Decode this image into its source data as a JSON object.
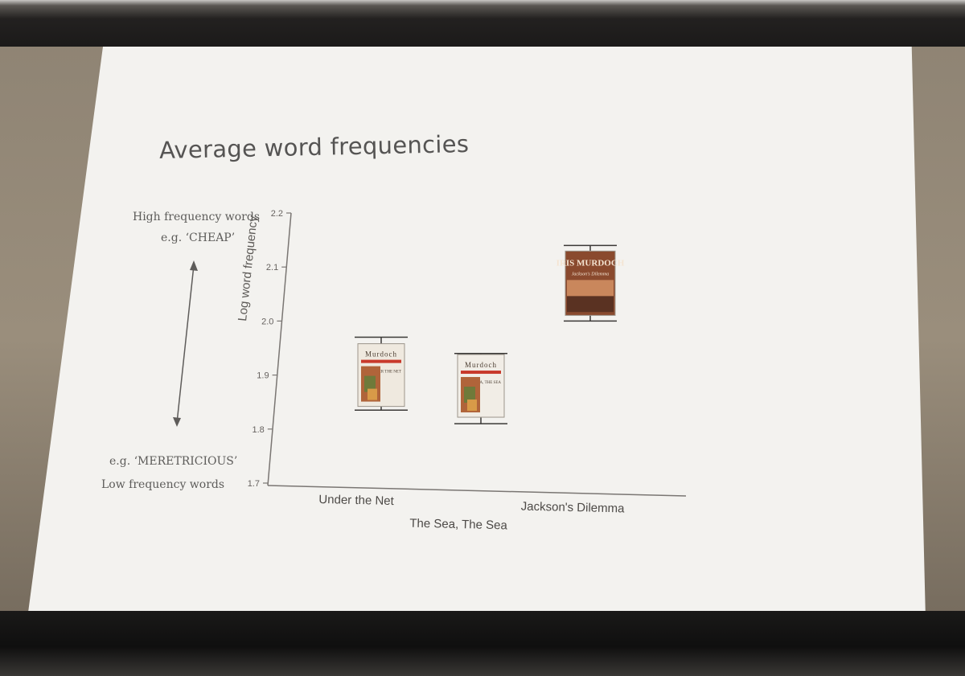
{
  "slide": {
    "title": "Average word frequencies",
    "high_label": "High frequency words",
    "high_example": "e.g. ‘CHEAP’",
    "low_example": "e.g. ‘MERETRICIOUS’",
    "low_label": "Low frequency words"
  },
  "chart_data": {
    "type": "bar",
    "ylabel": "Log word frequency",
    "xlabel": "",
    "ylim": [
      1.7,
      2.2
    ],
    "yticks": [
      1.7,
      1.8,
      1.9,
      2.0,
      2.1,
      2.2
    ],
    "ytick_labels": [
      "1.7",
      "1.8",
      "1.9",
      "2.0",
      "2.1",
      "2.2"
    ],
    "categories": [
      "Under the Net",
      "The Sea, The Sea",
      "Jackson's Dilemma"
    ],
    "values": [
      1.9,
      1.88,
      2.07
    ],
    "error_low": [
      1.835,
      1.81,
      2.0
    ],
    "error_high": [
      1.97,
      1.94,
      2.14
    ],
    "markers": [
      "book-cover-icon",
      "book-cover-icon",
      "book-cover-icon"
    ],
    "cover_text": [
      {
        "author": "Murdoch",
        "title": "UNDER THE NET"
      },
      {
        "author": "Murdoch",
        "title": "THE SEA, THE SEA"
      },
      {
        "author": "IRIS MURDOCH",
        "title": "Jackson's Dilemma"
      }
    ],
    "colors": {
      "axis": "#777371",
      "cover_jackson": "#8a4a2e",
      "cover_red": "#c8392b"
    }
  }
}
